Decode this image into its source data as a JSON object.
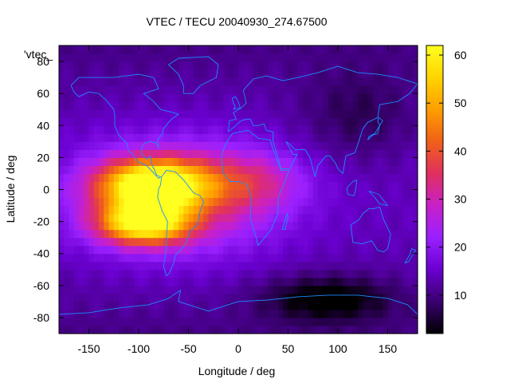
{
  "chart_data": {
    "type": "heatmap",
    "title": "VTEC / TECU 20040930_274.67500",
    "xlabel": "Longitude / deg",
    "ylabel": "Latitude / deg",
    "series_label": "'vtec_",
    "xlim": [
      -180,
      180
    ],
    "ylim": [
      -90,
      90
    ],
    "xticks": [
      -150,
      -100,
      -50,
      0,
      50,
      100,
      150
    ],
    "yticks": [
      -80,
      -60,
      -40,
      -20,
      0,
      20,
      40,
      60,
      80
    ],
    "colorbar": {
      "min": 2,
      "max": 62,
      "ticks": [
        10,
        20,
        30,
        40,
        50,
        60
      ],
      "palette": [
        "#000000",
        "#3a0070",
        "#6a00d0",
        "#9a20ff",
        "#c820c8",
        "#e03060",
        "#f06018",
        "#ff9e00",
        "#ffd400",
        "#ffff20"
      ]
    },
    "grid_step_deg": 5,
    "background_level": 14,
    "features": [
      {
        "name": "equatorial-anomaly-north",
        "lon": -85,
        "lat": 3,
        "amplitude": 48,
        "sigma_lon": 38,
        "sigma_lat": 11
      },
      {
        "name": "equatorial-anomaly-south",
        "lon": -95,
        "lat": -21,
        "amplitude": 42,
        "sigma_lon": 32,
        "sigma_lat": 9
      },
      {
        "name": "broad-daytime-bulge",
        "lon": -60,
        "lat": -5,
        "amplitude": 18,
        "sigma_lon": 70,
        "sigma_lat": 25
      },
      {
        "name": "atlantic-tongue",
        "lon": 15,
        "lat": 5,
        "amplitude": 12,
        "sigma_lon": 35,
        "sigma_lat": 13
      },
      {
        "name": "southern-ocean-minimum",
        "lon": 90,
        "lat": -68,
        "amplitude": -12,
        "sigma_lon": 45,
        "sigma_lat": 10
      },
      {
        "name": "asian-night-minimum",
        "lon": 120,
        "lat": 45,
        "amplitude": -6,
        "sigma_lon": 40,
        "sigma_lat": 20
      }
    ],
    "coastlines": [
      {
        "name": "north-america",
        "points": [
          [
            -168,
            65
          ],
          [
            -160,
            70
          ],
          [
            -140,
            70
          ],
          [
            -125,
            70
          ],
          [
            -100,
            72
          ],
          [
            -85,
            70
          ],
          [
            -80,
            63
          ],
          [
            -95,
            60
          ],
          [
            -85,
            55
          ],
          [
            -78,
            50
          ],
          [
            -65,
            48
          ],
          [
            -60,
            47
          ],
          [
            -67,
            44
          ],
          [
            -70,
            42
          ],
          [
            -75,
            38
          ],
          [
            -76,
            35
          ],
          [
            -81,
            31
          ],
          [
            -80,
            26
          ],
          [
            -82,
            29
          ],
          [
            -88,
            30
          ],
          [
            -94,
            29
          ],
          [
            -97,
            26
          ],
          [
            -97,
            22
          ],
          [
            -92,
            19
          ],
          [
            -88,
            21
          ],
          [
            -87,
            16
          ],
          [
            -84,
            12
          ],
          [
            -82,
            9
          ],
          [
            -78,
            8
          ],
          [
            -80,
            7
          ],
          [
            -86,
            11
          ],
          [
            -92,
            15
          ],
          [
            -100,
            17
          ],
          [
            -106,
            22
          ],
          [
            -110,
            24
          ],
          [
            -112,
            29
          ],
          [
            -117,
            32
          ],
          [
            -120,
            34
          ],
          [
            -124,
            40
          ],
          [
            -124,
            46
          ],
          [
            -125,
            50
          ],
          [
            -133,
            56
          ],
          [
            -140,
            60
          ],
          [
            -150,
            61
          ],
          [
            -160,
            58
          ],
          [
            -165,
            61
          ],
          [
            -168,
            65
          ]
        ]
      },
      {
        "name": "south-america",
        "points": [
          [
            -77,
            8
          ],
          [
            -72,
            12
          ],
          [
            -63,
            11
          ],
          [
            -55,
            6
          ],
          [
            -50,
            2
          ],
          [
            -45,
            -2
          ],
          [
            -38,
            -4
          ],
          [
            -35,
            -8
          ],
          [
            -39,
            -15
          ],
          [
            -41,
            -22
          ],
          [
            -48,
            -26
          ],
          [
            -53,
            -34
          ],
          [
            -58,
            -38
          ],
          [
            -63,
            -41
          ],
          [
            -65,
            -46
          ],
          [
            -69,
            -52
          ],
          [
            -72,
            -54
          ],
          [
            -75,
            -48
          ],
          [
            -73,
            -40
          ],
          [
            -72,
            -30
          ],
          [
            -71,
            -20
          ],
          [
            -76,
            -14
          ],
          [
            -81,
            -5
          ],
          [
            -80,
            0
          ],
          [
            -78,
            3
          ],
          [
            -77,
            8
          ]
        ]
      },
      {
        "name": "greenland",
        "points": [
          [
            -55,
            60
          ],
          [
            -45,
            60
          ],
          [
            -38,
            65
          ],
          [
            -22,
            70
          ],
          [
            -20,
            78
          ],
          [
            -30,
            83
          ],
          [
            -60,
            82
          ],
          [
            -70,
            78
          ],
          [
            -60,
            72
          ],
          [
            -55,
            65
          ],
          [
            -55,
            60
          ]
        ]
      },
      {
        "name": "africa",
        "points": [
          [
            -17,
            21
          ],
          [
            -13,
            28
          ],
          [
            -6,
            35
          ],
          [
            10,
            37
          ],
          [
            20,
            32
          ],
          [
            32,
            31
          ],
          [
            34,
            27
          ],
          [
            38,
            20
          ],
          [
            43,
            12
          ],
          [
            51,
            12
          ],
          [
            45,
            2
          ],
          [
            40,
            -5
          ],
          [
            40,
            -15
          ],
          [
            33,
            -25
          ],
          [
            20,
            -35
          ],
          [
            18,
            -30
          ],
          [
            12,
            -18
          ],
          [
            13,
            -5
          ],
          [
            9,
            3
          ],
          [
            0,
            5
          ],
          [
            -8,
            5
          ],
          [
            -15,
            10
          ],
          [
            -17,
            21
          ]
        ]
      },
      {
        "name": "eurasia",
        "points": [
          [
            -10,
            36
          ],
          [
            -9,
            43
          ],
          [
            -2,
            44
          ],
          [
            -5,
            48
          ],
          [
            3,
            51
          ],
          [
            8,
            54
          ],
          [
            5,
            62
          ],
          [
            15,
            69
          ],
          [
            28,
            71
          ],
          [
            45,
            68
          ],
          [
            60,
            70
          ],
          [
            80,
            73
          ],
          [
            100,
            77
          ],
          [
            120,
            73
          ],
          [
            140,
            72
          ],
          [
            160,
            70
          ],
          [
            180,
            66
          ],
          [
            172,
            60
          ],
          [
            160,
            55
          ],
          [
            142,
            53
          ],
          [
            140,
            45
          ],
          [
            130,
            42
          ],
          [
            125,
            38
          ],
          [
            121,
            30
          ],
          [
            117,
            23
          ],
          [
            108,
            21
          ],
          [
            105,
            10
          ],
          [
            100,
            13
          ],
          [
            98,
            16
          ],
          [
            92,
            21
          ],
          [
            88,
            21
          ],
          [
            80,
            15
          ],
          [
            77,
            8
          ],
          [
            72,
            20
          ],
          [
            67,
            25
          ],
          [
            57,
            25
          ],
          [
            52,
            28
          ],
          [
            48,
            30
          ],
          [
            55,
            22
          ],
          [
            59,
            22
          ],
          [
            52,
            13
          ],
          [
            43,
            13
          ],
          [
            35,
            30
          ],
          [
            35,
            36
          ],
          [
            28,
            37
          ],
          [
            26,
            41
          ],
          [
            20,
            40
          ],
          [
            15,
            40
          ],
          [
            12,
            44
          ],
          [
            8,
            44
          ],
          [
            3,
            43
          ],
          [
            -10,
            36
          ]
        ]
      },
      {
        "name": "australia",
        "points": [
          [
            113,
            -22
          ],
          [
            115,
            -33
          ],
          [
            124,
            -34
          ],
          [
            134,
            -32
          ],
          [
            140,
            -38
          ],
          [
            146,
            -39
          ],
          [
            150,
            -37
          ],
          [
            153,
            -28
          ],
          [
            146,
            -19
          ],
          [
            142,
            -11
          ],
          [
            136,
            -12
          ],
          [
            131,
            -12
          ],
          [
            125,
            -15
          ],
          [
            121,
            -19
          ],
          [
            113,
            -22
          ]
        ]
      },
      {
        "name": "antarctica",
        "points": [
          [
            -180,
            -78
          ],
          [
            -150,
            -77
          ],
          [
            -120,
            -74
          ],
          [
            -90,
            -72
          ],
          [
            -70,
            -68
          ],
          [
            -58,
            -63
          ],
          [
            -60,
            -70
          ],
          [
            -30,
            -76
          ],
          [
            0,
            -70
          ],
          [
            30,
            -69
          ],
          [
            60,
            -67
          ],
          [
            90,
            -66
          ],
          [
            120,
            -66
          ],
          [
            150,
            -68
          ],
          [
            170,
            -72
          ],
          [
            180,
            -78
          ]
        ]
      },
      {
        "name": "madagascar",
        "points": [
          [
            44,
            -25
          ],
          [
            49,
            -15
          ],
          [
            50,
            -17
          ],
          [
            47,
            -25
          ],
          [
            44,
            -25
          ]
        ]
      },
      {
        "name": "japan",
        "points": [
          [
            130,
            31
          ],
          [
            135,
            34
          ],
          [
            140,
            35
          ],
          [
            142,
            40
          ],
          [
            140,
            43
          ],
          [
            141,
            45
          ],
          [
            145,
            43
          ],
          [
            140,
            38
          ],
          [
            137,
            35
          ],
          [
            131,
            33
          ],
          [
            130,
            31
          ]
        ]
      },
      {
        "name": "uk",
        "points": [
          [
            -5,
            50
          ],
          [
            2,
            51
          ],
          [
            0,
            55
          ],
          [
            -3,
            58
          ],
          [
            -6,
            57
          ],
          [
            -5,
            54
          ],
          [
            -3,
            52
          ],
          [
            -5,
            50
          ]
        ]
      },
      {
        "name": "borneo",
        "points": [
          [
            109,
            1
          ],
          [
            115,
            5
          ],
          [
            119,
            6
          ],
          [
            118,
            0
          ],
          [
            116,
            -4
          ],
          [
            110,
            -3
          ],
          [
            109,
            1
          ]
        ]
      },
      {
        "name": "new-guinea",
        "points": [
          [
            131,
            -1
          ],
          [
            141,
            -3
          ],
          [
            150,
            -10
          ],
          [
            142,
            -9
          ],
          [
            137,
            -5
          ],
          [
            131,
            -1
          ]
        ]
      },
      {
        "name": "new-zealand",
        "points": [
          [
            167,
            -46
          ],
          [
            172,
            -41
          ],
          [
            174,
            -37
          ],
          [
            178,
            -38
          ],
          [
            175,
            -41
          ],
          [
            171,
            -45
          ],
          [
            167,
            -46
          ]
        ]
      }
    ]
  }
}
